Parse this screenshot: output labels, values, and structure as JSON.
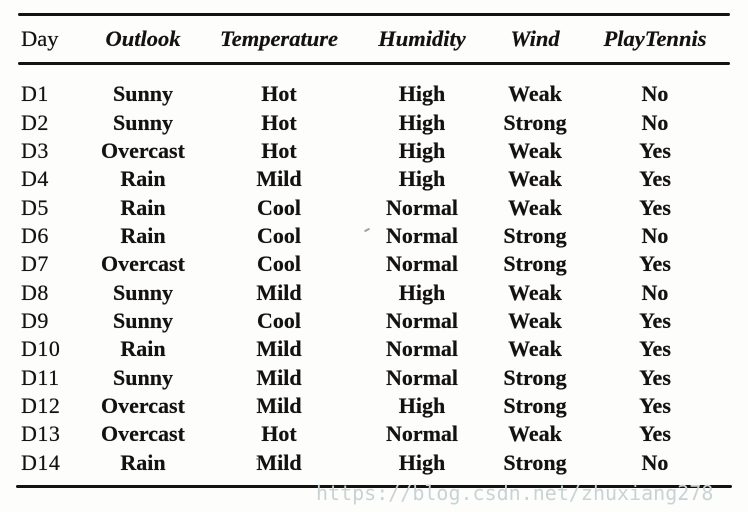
{
  "table": {
    "columns": [
      "Day",
      "Outlook",
      "Temperature",
      "Humidity",
      "Wind",
      "PlayTennis"
    ],
    "rows": [
      [
        "D1",
        "Sunny",
        "Hot",
        "High",
        "Weak",
        "No"
      ],
      [
        "D2",
        "Sunny",
        "Hot",
        "High",
        "Strong",
        "No"
      ],
      [
        "D3",
        "Overcast",
        "Hot",
        "High",
        "Weak",
        "Yes"
      ],
      [
        "D4",
        "Rain",
        "Mild",
        "High",
        "Weak",
        "Yes"
      ],
      [
        "D5",
        "Rain",
        "Cool",
        "Normal",
        "Weak",
        "Yes"
      ],
      [
        "D6",
        "Rain",
        "Cool",
        "Normal",
        "Strong",
        "No"
      ],
      [
        "D7",
        "Overcast",
        "Cool",
        "Normal",
        "Strong",
        "Yes"
      ],
      [
        "D8",
        "Sunny",
        "Mild",
        "High",
        "Weak",
        "No"
      ],
      [
        "D9",
        "Sunny",
        "Cool",
        "Normal",
        "Weak",
        "Yes"
      ],
      [
        "D10",
        "Rain",
        "Mild",
        "Normal",
        "Weak",
        "Yes"
      ],
      [
        "D11",
        "Sunny",
        "Mild",
        "Normal",
        "Strong",
        "Yes"
      ],
      [
        "D12",
        "Overcast",
        "Mild",
        "High",
        "Strong",
        "Yes"
      ],
      [
        "D13",
        "Overcast",
        "Hot",
        "Normal",
        "Weak",
        "Yes"
      ],
      [
        "D14",
        "Rain",
        "Mild",
        "High",
        "Strong",
        "No"
      ]
    ]
  },
  "watermark": {
    "text": "https://blog.csdn.net/zhuxiang278",
    "color": "#c9d3d5"
  },
  "colors": {
    "background": "#fdfdfc",
    "text": "#141210",
    "rule": "#151310"
  }
}
